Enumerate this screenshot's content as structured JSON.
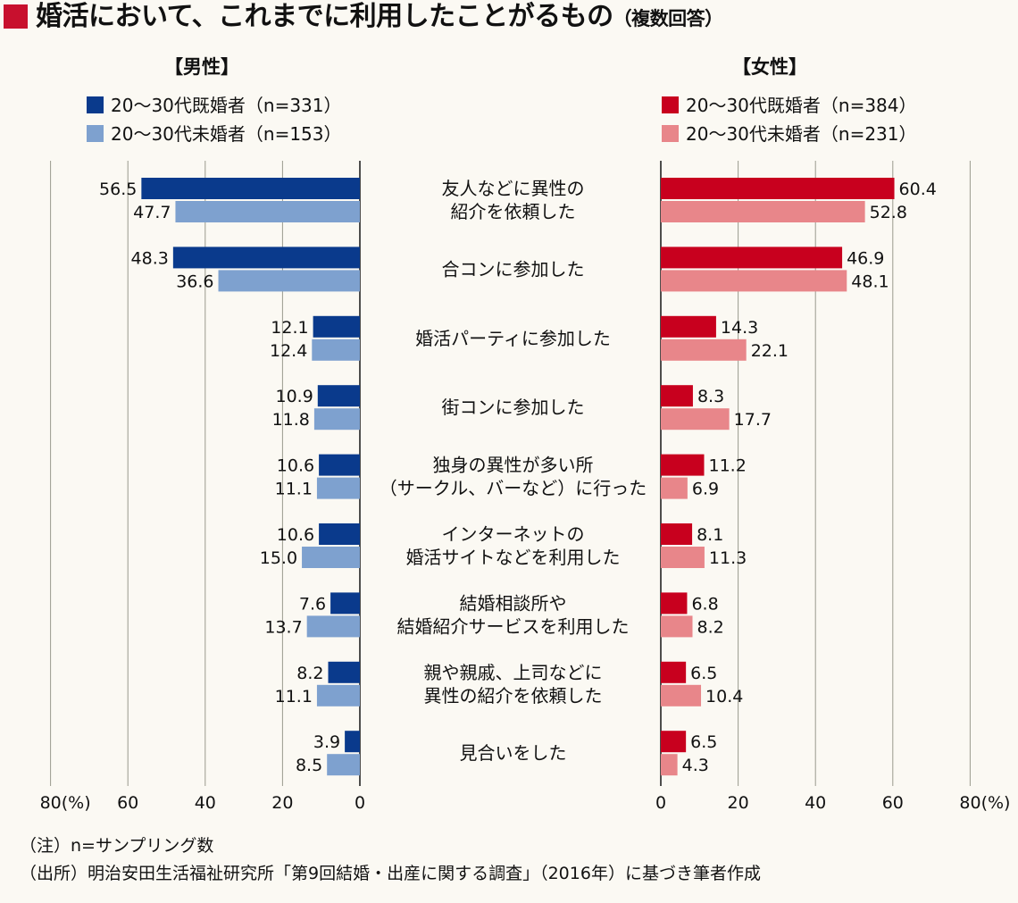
{
  "title": {
    "main": "婚活において、これまでに利用したことがるもの",
    "note": "（複数回答）"
  },
  "colors": {
    "accent": "#c8102e",
    "male_married": "#0a3a8c",
    "male_unmarried": "#7ea1cf",
    "female_married": "#c8001e",
    "female_unmarried": "#e8868a",
    "axis": "#222222",
    "grid": "#9a9a8e"
  },
  "chart_data": {
    "type": "bar",
    "orientation": "horizontal",
    "layout": "back-to-back",
    "unit_label": "(%)",
    "axis_range": [
      0,
      80
    ],
    "axis_ticks": [
      0,
      20,
      40,
      60,
      80
    ],
    "categories": [
      [
        "友人などに異性の",
        "紹介を依頼した"
      ],
      [
        "合コンに参加した"
      ],
      [
        "婚活パーティに参加した"
      ],
      [
        "街コンに参加した"
      ],
      [
        "独身の異性が多い所",
        "（サークル、バーなど）に行った"
      ],
      [
        "インターネットの",
        "婚活サイトなどを利用した"
      ],
      [
        "結婚相談所や",
        "結婚紹介サービスを利用した"
      ],
      [
        "親や親戚、上司などに",
        "異性の紹介を依頼した"
      ],
      [
        "見合いをした"
      ]
    ],
    "panels": [
      {
        "side": "left",
        "label": "【男性】",
        "series": [
          {
            "name": "20～30代既婚者（n=331）",
            "color": "#0a3a8c",
            "values": [
              56.5,
              48.3,
              12.1,
              10.9,
              10.6,
              10.6,
              7.6,
              8.2,
              3.9
            ]
          },
          {
            "name": "20～30代未婚者（n=153）",
            "color": "#7ea1cf",
            "values": [
              47.7,
              36.6,
              12.4,
              11.8,
              11.1,
              15.0,
              13.7,
              11.1,
              8.5
            ]
          }
        ]
      },
      {
        "side": "right",
        "label": "【女性】",
        "series": [
          {
            "name": "20～30代既婚者（n=384）",
            "color": "#c8001e",
            "values": [
              60.4,
              46.9,
              14.3,
              8.3,
              11.2,
              8.1,
              6.8,
              6.5,
              6.5
            ]
          },
          {
            "name": "20～30代未婚者（n=231）",
            "color": "#e8868a",
            "values": [
              52.8,
              48.1,
              22.1,
              17.7,
              6.9,
              11.3,
              8.2,
              10.4,
              4.3
            ]
          }
        ]
      }
    ]
  },
  "footer": {
    "note": "（注）n=サンプリング数",
    "source": "（出所）明治安田生活福祉研究所「第9回結婚・出産に関する調査」（2016年）に基づき筆者作成"
  }
}
